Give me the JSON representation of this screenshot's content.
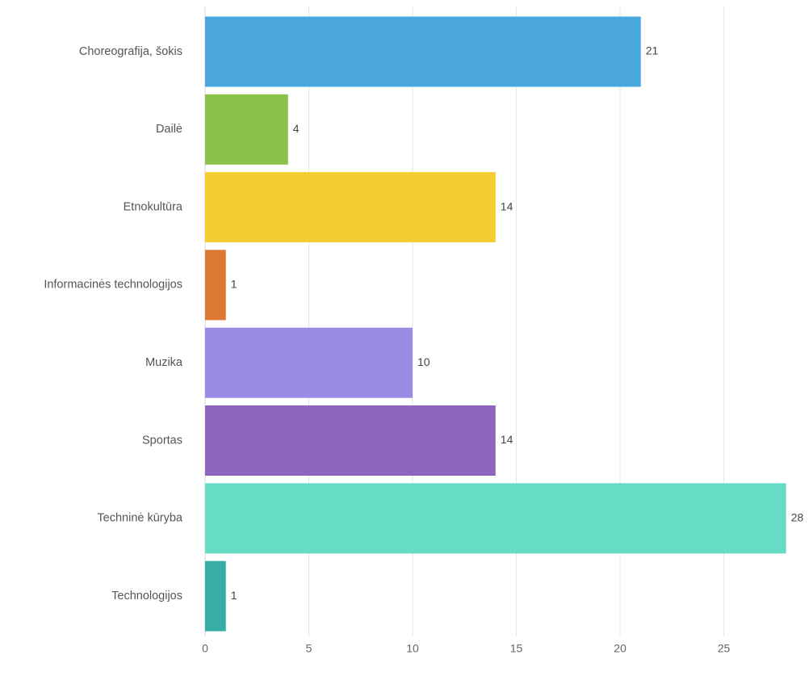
{
  "chart_data": {
    "type": "bar",
    "orientation": "horizontal",
    "categories": [
      "Choreografija, šokis",
      "Dailė",
      "Etnokultūra",
      "Informacinės technologijos",
      "Muzika",
      "Sportas",
      "Techninė kūryba",
      "Technologijos"
    ],
    "values": [
      21,
      4,
      14,
      1,
      10,
      14,
      28,
      1
    ],
    "colors": [
      "#4aa7dd",
      "#8bc34a",
      "#f4cd32",
      "#dd7832",
      "#9b8be6",
      "#8f64bf",
      "#66dcc6",
      "#36ada5"
    ],
    "x_ticks": [
      0,
      5,
      10,
      15,
      20,
      25
    ],
    "xlim": [
      0,
      28
    ],
    "grid": true,
    "title": "",
    "xlabel": "",
    "ylabel": ""
  }
}
